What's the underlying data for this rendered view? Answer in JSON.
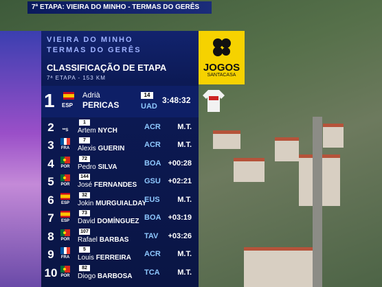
{
  "header": {
    "stage_banner": "7ª ETAPA: VIEIRA DO MINHO - TERMAS DO GERÊS",
    "start": "VIEIRA DO MINHO",
    "finish": "TERMAS DO GERÊS",
    "title": "CLASSIFICAÇÃO DE ETAPA",
    "subtitle": "7ª ETAPA - 153 KM"
  },
  "sponsor": {
    "name": "JOGOS",
    "subname": "SANTACASA"
  },
  "table": {
    "rows": [
      {
        "rank": "1",
        "country": "ESP",
        "bib": "14",
        "first": "Adrià",
        "last": "PERICAS",
        "team": "UAD",
        "time": "3:48:32"
      },
      {
        "rank": "2",
        "country": "**S",
        "bib": "1",
        "first": "Artem",
        "last": "NYCH",
        "team": "ACR",
        "time": "M.T."
      },
      {
        "rank": "3",
        "country": "FRA",
        "bib": "7",
        "first": "Alexis",
        "last": "GUERIN",
        "team": "ACR",
        "time": "M.T."
      },
      {
        "rank": "4",
        "country": "POR",
        "bib": "72",
        "first": "Pedro",
        "last": "SILVA",
        "team": "BOA",
        "time": "+00:28"
      },
      {
        "rank": "5",
        "country": "POR",
        "bib": "144",
        "first": "José",
        "last": "FERNANDES",
        "team": "GSU",
        "time": "+02:21"
      },
      {
        "rank": "6",
        "country": "ESP",
        "bib": "32",
        "first": "Jokin",
        "last": "MURGUIALDAY",
        "team": "EUS",
        "time": "M.T."
      },
      {
        "rank": "7",
        "country": "ESP",
        "bib": "73",
        "first": "David",
        "last": "DOMÍNGUEZ",
        "team": "BOA",
        "time": "+03:19"
      },
      {
        "rank": "8",
        "country": "POR",
        "bib": "107",
        "first": "Rafael",
        "last": "BARBAS",
        "team": "TAV",
        "time": "+03:26"
      },
      {
        "rank": "9",
        "country": "FRA",
        "bib": "5",
        "first": "Louis",
        "last": "FERREIRA",
        "team": "ACR",
        "time": "M.T."
      },
      {
        "rank": "10",
        "country": "POR",
        "bib": "82",
        "first": "Diogo",
        "last": "BARBOSA",
        "team": "TCA",
        "time": "M.T."
      }
    ]
  }
}
